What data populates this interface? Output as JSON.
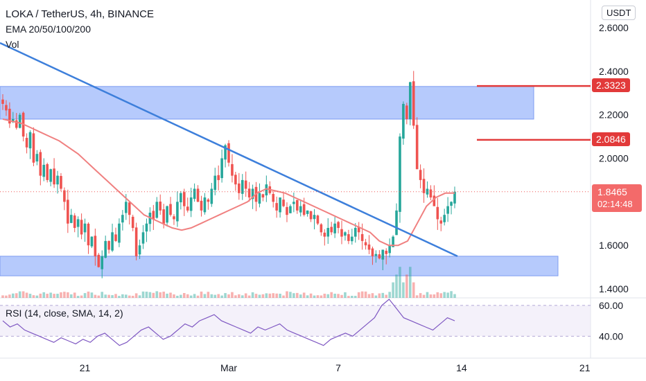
{
  "header": {
    "symbol_line": "LOKA / TetherUS, 4h, BINANCE",
    "indicator_line": "EMA 20/50/100/200",
    "vol_line": "Vol",
    "currency_badge": "USDT"
  },
  "rsi_label": "RSI (14, close, SMA, 14, 2)",
  "price_badges": {
    "last_price": "1.8465",
    "countdown": "02:14:48",
    "level_high": "2.3323",
    "level_mid": "2.0846"
  },
  "colors": {
    "up": "#26a69a",
    "down": "#ef5350",
    "ema": "#f08080",
    "trendline": "#3d7fdb",
    "zone": "#a9c1fb",
    "level_line": "#e23a3a",
    "rsi": "#7e57c2",
    "rsi_band": "#ede7f6"
  },
  "chart_data": [
    {
      "type": "candlestick",
      "title": "LOKA / TetherUS, 4h, BINANCE",
      "y_axis_ticks": [
        "2.6000",
        "2.4000",
        "2.2000",
        "2.0000",
        "1.6000",
        "1.4000"
      ],
      "ylim": [
        1.3,
        2.7
      ],
      "x_ticks": [
        "21",
        "Mar",
        "7",
        "14",
        "21"
      ],
      "x_tick_candle_index": [
        24,
        66,
        98,
        134,
        170
      ],
      "candles_close_approx": [
        2.25,
        2.22,
        2.16,
        2.18,
        2.14,
        2.2,
        2.1,
        2.05,
        2.12,
        1.98,
        2.02,
        1.92,
        1.97,
        1.9,
        1.95,
        1.88,
        1.92,
        1.86,
        1.8,
        1.7,
        1.74,
        1.68,
        1.72,
        1.65,
        1.7,
        1.6,
        1.64,
        1.55,
        1.5,
        1.55,
        1.62,
        1.58,
        1.66,
        1.62,
        1.7,
        1.74,
        1.8,
        1.74,
        1.68,
        1.55,
        1.6,
        1.66,
        1.7,
        1.75,
        1.72,
        1.8,
        1.76,
        1.7,
        1.78,
        1.74,
        1.72,
        1.8,
        1.84,
        1.78,
        1.76,
        1.82,
        1.86,
        1.8,
        1.76,
        1.82,
        1.8,
        1.86,
        1.92,
        1.9,
        2.0,
        2.06,
        1.98,
        1.92,
        1.88,
        1.84,
        1.9,
        1.86,
        1.82,
        1.86,
        1.8,
        1.84,
        1.82,
        1.88,
        1.84,
        1.8,
        1.76,
        1.82,
        1.78,
        1.74,
        1.78,
        1.8,
        1.76,
        1.78,
        1.74,
        1.76,
        1.72,
        1.74,
        1.7,
        1.66,
        1.64,
        1.68,
        1.66,
        1.7,
        1.68,
        1.64,
        1.66,
        1.62,
        1.64,
        1.68,
        1.66,
        1.62,
        1.6,
        1.58,
        1.55,
        1.56,
        1.54,
        1.58,
        1.56,
        1.6,
        1.64,
        1.76,
        2.1,
        2.25,
        2.18,
        2.35,
        2.15,
        1.95,
        1.9,
        1.84,
        1.86,
        1.82,
        1.78,
        1.72,
        1.7,
        1.74,
        1.78,
        1.8,
        1.8465
      ],
      "ema_20_approx": [
        2.18,
        2.17,
        2.16,
        2.14,
        2.12,
        2.1,
        2.08,
        2.05,
        2.02,
        1.98,
        1.94,
        1.9,
        1.86,
        1.82,
        1.78,
        1.74,
        1.72,
        1.7,
        1.68,
        1.67,
        1.68,
        1.7,
        1.72,
        1.74,
        1.76,
        1.78,
        1.8,
        1.84,
        1.86,
        1.85,
        1.84,
        1.82,
        1.8,
        1.78,
        1.76,
        1.74,
        1.72,
        1.7,
        1.68,
        1.66,
        1.62,
        1.6,
        1.6,
        1.62,
        1.7,
        1.78,
        1.82,
        1.84,
        1.84
      ],
      "trendline_price": [
        2.53,
        1.55
      ],
      "support_zone": [
        1.46,
        1.55
      ],
      "resistance_zone": [
        2.18,
        2.33
      ],
      "levels": [
        2.3323,
        2.0846
      ],
      "last_price": 1.8465,
      "volume_scale_note_values": []
    },
    {
      "type": "line",
      "title": "RSI (14, close, SMA, 14, 2)",
      "y_axis_ticks": [
        "60.00",
        "40.00"
      ],
      "ylim": [
        28,
        64
      ],
      "values": [
        50,
        46,
        48,
        44,
        42,
        40,
        38,
        36,
        39,
        37,
        35,
        38,
        36,
        40,
        42,
        38,
        34,
        36,
        40,
        44,
        46,
        42,
        38,
        40,
        44,
        48,
        46,
        50,
        52,
        54,
        50,
        48,
        46,
        44,
        42,
        46,
        44,
        46,
        48,
        44,
        42,
        40,
        38,
        36,
        34,
        38,
        40,
        42,
        40,
        44,
        48,
        52,
        60,
        64,
        58,
        52,
        50,
        48,
        46,
        44,
        48,
        52,
        50
      ]
    }
  ]
}
